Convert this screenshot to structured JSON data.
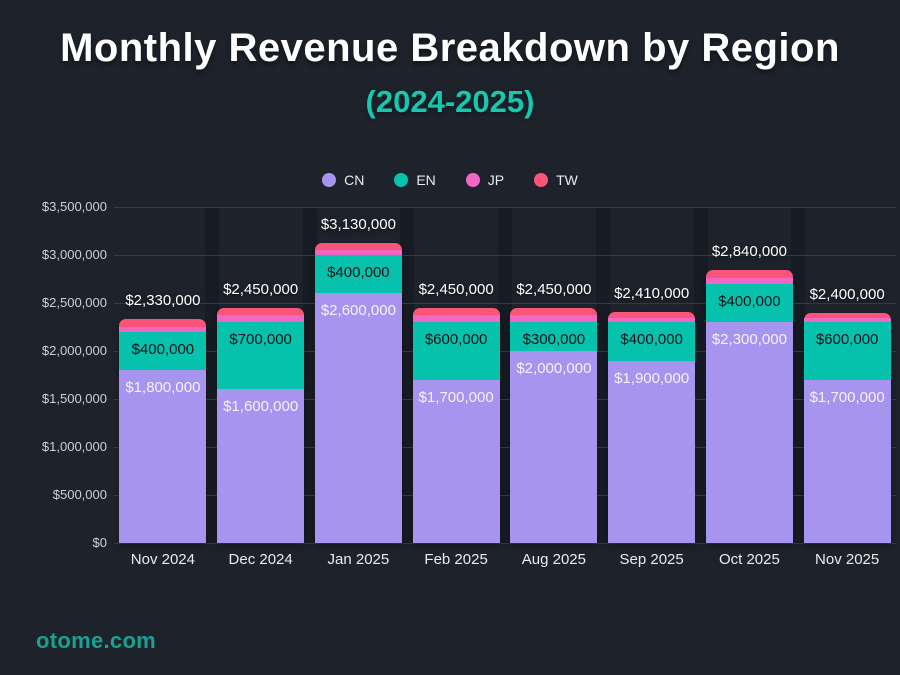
{
  "title": "Monthly Revenue Breakdown by Region",
  "subtitle": "(2024-2025)",
  "watermark": "otome.com",
  "colors": {
    "background": "#1e222b",
    "title_text": "#ffffff",
    "subtitle_text": "#15c9ae",
    "watermark_text": "#17a294",
    "grid": "#353b46",
    "column_gap": "#171b24",
    "axis_text_y": "#ccd1d8",
    "axis_text_x": "#e9ebee",
    "cn": "#a794ef",
    "en": "#06c2ac",
    "jp": "#f266c6",
    "tw": "#fa5578",
    "label_on_teal": "#0e1218",
    "label_on_purple": "#f5f1ff",
    "total_label": "#ffffff"
  },
  "legend": [
    {
      "label": "CN",
      "color": "#a794ef"
    },
    {
      "label": "EN",
      "color": "#06c2ac"
    },
    {
      "label": "JP",
      "color": "#f266c6"
    },
    {
      "label": "TW",
      "color": "#fa5578"
    }
  ],
  "chart_data": {
    "type": "bar",
    "stacked": true,
    "title": "Monthly Revenue Breakdown by Region (2024-2025)",
    "legend_position": "top",
    "grid": true,
    "categories": [
      "Nov 2024",
      "Dec 2024",
      "Jan 2025",
      "Feb 2025",
      "Aug 2025",
      "Sep 2025",
      "Oct 2025",
      "Nov 2025"
    ],
    "series": [
      {
        "name": "CN",
        "color": "#a794ef",
        "labeled": true,
        "values": [
          1800000,
          1600000,
          2600000,
          1700000,
          2000000,
          1900000,
          2300000,
          1700000
        ]
      },
      {
        "name": "EN",
        "color": "#06c2ac",
        "labeled": true,
        "values": [
          400000,
          700000,
          400000,
          600000,
          300000,
          400000,
          400000,
          600000
        ]
      },
      {
        "name": "JP",
        "color": "#f266c6",
        "labeled": false,
        "values": [
          50000,
          70000,
          50000,
          70000,
          70000,
          40000,
          60000,
          40000
        ]
      },
      {
        "name": "TW",
        "color": "#fa5578",
        "labeled": false,
        "values": [
          80000,
          80000,
          80000,
          80000,
          80000,
          70000,
          80000,
          60000
        ]
      }
    ],
    "totals": [
      2330000,
      2450000,
      3130000,
      2450000,
      2450000,
      2410000,
      2840000,
      2400000
    ],
    "ylim": [
      0,
      3500000
    ],
    "ytick_step": 500000,
    "ytick_labels": [
      "$0",
      "$500,000",
      "$1,000,000",
      "$1,500,000",
      "$2,000,000",
      "$2,500,000",
      "$3,000,000",
      "$3,500,000"
    ]
  }
}
